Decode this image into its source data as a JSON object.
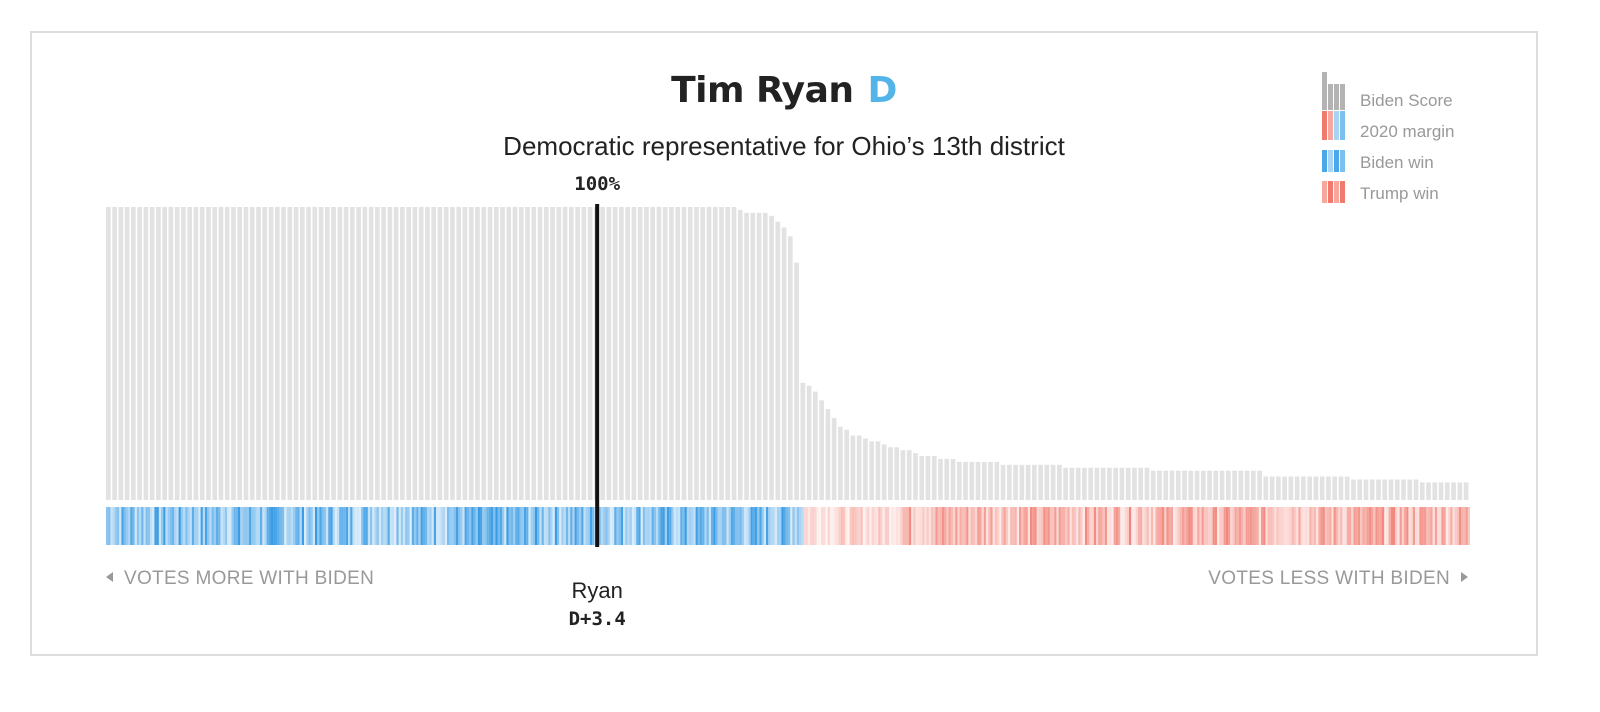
{
  "header": {
    "name": "Tim Ryan",
    "party": "D",
    "subtitle": "Democratic representative for Ohio’s 13th district"
  },
  "legend": {
    "biden_score": "Biden Score",
    "margin": "2020 margin",
    "biden_win": "Biden win",
    "trump_win": "Trump win"
  },
  "axis": {
    "left_label": "VOTES MORE WITH BIDEN",
    "right_label": "VOTES LESS WITH BIDEN"
  },
  "colors": {
    "party_d": "#52b4e8",
    "bar_fill": "#e2e2e2",
    "biden_strip": "#1f8ee0",
    "trump_strip": "#f07a6e",
    "marker": "#111111"
  },
  "chart_data": {
    "type": "bar",
    "ylim": [
      0,
      100
    ],
    "member_count": 218,
    "member": {
      "name": "Ryan",
      "score_label": "100%",
      "score": 100,
      "margin_label": "D+3.4",
      "rank_index": 78
    },
    "scores": [
      100,
      100,
      100,
      100,
      100,
      100,
      100,
      100,
      100,
      100,
      100,
      100,
      100,
      100,
      100,
      100,
      100,
      100,
      100,
      100,
      100,
      100,
      100,
      100,
      100,
      100,
      100,
      100,
      100,
      100,
      100,
      100,
      100,
      100,
      100,
      100,
      100,
      100,
      100,
      100,
      100,
      100,
      100,
      100,
      100,
      100,
      100,
      100,
      100,
      100,
      100,
      100,
      100,
      100,
      100,
      100,
      100,
      100,
      100,
      100,
      100,
      100,
      100,
      100,
      100,
      100,
      100,
      100,
      100,
      100,
      100,
      100,
      100,
      100,
      100,
      100,
      100,
      100,
      100,
      100,
      100,
      100,
      100,
      100,
      100,
      100,
      100,
      100,
      100,
      100,
      100,
      100,
      100,
      100,
      100,
      100,
      100,
      100,
      100,
      100,
      100,
      99,
      98,
      98,
      98,
      98,
      97,
      95,
      93,
      90,
      81,
      40,
      39,
      37,
      34,
      31,
      28,
      25,
      24,
      22,
      22,
      21,
      20,
      20,
      19,
      18,
      18,
      17,
      17,
      16,
      15,
      15,
      15,
      14,
      14,
      14,
      13,
      13,
      13,
      13,
      13,
      13,
      13,
      12,
      12,
      12,
      12,
      12,
      12,
      12,
      12,
      12,
      12,
      11,
      11,
      11,
      11,
      11,
      11,
      11,
      11,
      11,
      11,
      11,
      11,
      11,
      11,
      10,
      10,
      10,
      10,
      10,
      10,
      10,
      10,
      10,
      10,
      10,
      10,
      10,
      10,
      10,
      10,
      10,
      10,
      8,
      8,
      8,
      8,
      8,
      8,
      8,
      8,
      8,
      8,
      8,
      8,
      8,
      8,
      7,
      7,
      7,
      7,
      7,
      7,
      7,
      7,
      7,
      7,
      7,
      6,
      6,
      6,
      6,
      6,
      6,
      6,
      6
    ]
  }
}
